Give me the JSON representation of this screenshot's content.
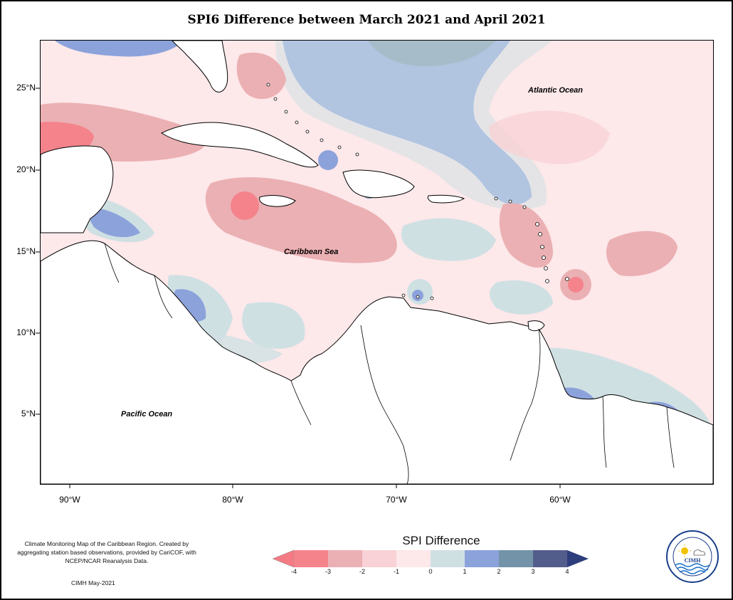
{
  "title": "SPI6 Difference between March 2021 and April 2021",
  "map_labels": {
    "atlantic": "Atlantic Ocean",
    "caribbean": "Caribbean Sea",
    "pacific": "Pacific Ocean"
  },
  "lat_ticks": [
    "25°N",
    "20°N",
    "15°N",
    "10°N",
    "5°N"
  ],
  "lon_ticks": [
    "90°W",
    "80°W",
    "70°W",
    "60°W"
  ],
  "credit": {
    "text": "Climate Monitoring Map of the Caribbean Region. Created by aggregating station based observations, provided by CariCOF, with NCEP/NCAR Reanalysis Data.",
    "date": "CIMH May-2021"
  },
  "legend": {
    "title": "SPI Difference",
    "ticks": [
      "-4",
      "-3",
      "-2",
      "-1",
      "0",
      "1",
      "2",
      "3",
      "4"
    ],
    "colors": [
      "#f4838c",
      "#ebb0b3",
      "#f8d2d6",
      "#fde8ea",
      "#cfe0e3",
      "#8ca2db",
      "#7393a9",
      "#535d8c"
    ],
    "under_color": "#f47a84",
    "over_color": "#2e3d7c"
  },
  "logo": {
    "name": "CIMH",
    "ring_text": "Caribbean Institute for Meteorology and Hydrology"
  }
}
